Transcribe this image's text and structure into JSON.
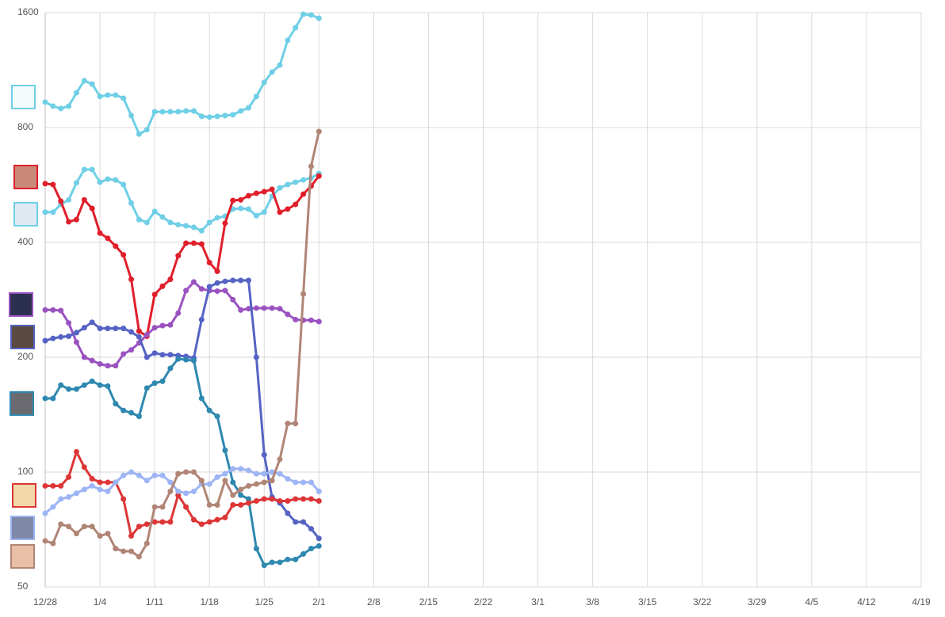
{
  "chart_data": {
    "type": "line",
    "log_scale": true,
    "grid": true,
    "categories": [
      "12/28",
      null,
      null,
      null,
      null,
      null,
      null,
      "1/4",
      null,
      null,
      null,
      null,
      null,
      null,
      "1/11",
      null,
      null,
      null,
      null,
      null,
      null,
      "1/18",
      null,
      null,
      null,
      null,
      null,
      null,
      "1/25",
      null,
      null,
      null,
      null,
      null,
      null,
      "2/1",
      null,
      null,
      null,
      null,
      null,
      null,
      "2/8",
      null,
      null,
      null,
      null,
      null,
      null,
      "2/15",
      null,
      null,
      null,
      null,
      null,
      null,
      "2/22",
      null,
      null,
      null,
      null,
      null,
      null,
      "3/1",
      null,
      null,
      null,
      null,
      null,
      null,
      "3/8",
      null,
      null,
      null,
      null,
      null,
      null,
      "3/15",
      null,
      null,
      null,
      null,
      null,
      null,
      "3/22",
      null,
      null,
      null,
      null,
      null,
      null,
      "3/29",
      null,
      null,
      null,
      null,
      null,
      null,
      "4/5",
      null,
      null,
      null,
      null,
      null,
      null,
      "4/12",
      null,
      null,
      null,
      null,
      null,
      null,
      "4/19"
    ],
    "ylim": [
      50,
      1600
    ],
    "yticks": [
      50,
      100,
      200,
      400,
      800,
      1600
    ],
    "series": [
      {
        "color": "#6fcfe6",
        "values": [
          933,
          910,
          897,
          910,
          987,
          1061,
          1040,
          965,
          973,
          973,
          955,
          860,
          769,
          789,
          880,
          880,
          880,
          880,
          884,
          884,
          856,
          852,
          856,
          860,
          864,
          884,
          901,
          965,
          1051,
          1118,
          1166,
          1354,
          1461,
          1585,
          1578,
          1547,
          null,
          null,
          null,
          null,
          null,
          null,
          null,
          null,
          null,
          null,
          null,
          null,
          null,
          null,
          null,
          null,
          null,
          null,
          null,
          null,
          null,
          null,
          null,
          null,
          null,
          null,
          null,
          null,
          null,
          null,
          null,
          null,
          null,
          null,
          null,
          null,
          null,
          null,
          null,
          null,
          null,
          null,
          null,
          null,
          null,
          null,
          null,
          null,
          null,
          null,
          null,
          null,
          null,
          null,
          null,
          null,
          null,
          null,
          null,
          null,
          null,
          null,
          null,
          null,
          null,
          null,
          null,
          null,
          null,
          null,
          null,
          null,
          null,
          null,
          null,
          null,
          null
        ]
      },
      {
        "color": "#6fcfe6",
        "values": [
          480,
          480,
          503,
          517,
          573,
          621,
          621,
          575,
          586,
          583,
          567,
          507,
          459,
          451,
          482,
          466,
          451,
          445,
          442,
          438,
          429,
          451,
          464,
          468,
          489,
          491,
          489,
          470,
          480,
          528,
          556,
          567,
          575,
          583,
          590,
          606,
          null,
          null,
          null,
          null,
          null,
          null,
          null,
          null,
          null,
          null,
          null,
          null,
          null,
          null,
          null,
          null,
          null,
          null,
          null,
          null,
          null,
          null,
          null,
          null,
          null,
          null,
          null,
          null,
          null,
          null,
          null,
          null,
          null,
          null,
          null,
          null,
          null,
          null,
          null,
          null,
          null,
          null,
          null,
          null,
          null,
          null,
          null,
          null,
          null,
          null,
          null,
          null,
          null,
          null,
          null,
          null,
          null,
          null,
          null,
          null,
          null,
          null,
          null,
          null,
          null,
          null,
          null,
          null,
          null,
          null,
          null,
          null,
          null,
          null,
          null,
          null,
          null
        ]
      },
      {
        "color": "#e01f2b",
        "values": [
          570,
          567,
          513,
          453,
          459,
          517,
          491,
          423,
          410,
          391,
          371,
          320,
          234,
          227,
          292,
          307,
          320,
          369,
          398,
          398,
          396,
          354,
          336,
          449,
          515,
          517,
          530,
          538,
          543,
          551,
          480,
          489,
          503,
          535,
          562,
          597,
          null,
          null,
          null,
          null,
          null,
          null,
          null,
          null,
          null,
          null,
          null,
          null,
          null,
          null,
          null,
          null,
          null,
          null,
          null,
          null,
          null,
          null,
          null,
          null,
          null,
          null,
          null,
          null,
          null,
          null,
          null,
          null,
          null,
          null,
          null,
          null,
          null,
          null,
          null,
          null,
          null,
          null,
          null,
          null,
          null,
          null,
          null,
          null,
          null,
          null,
          null,
          null,
          null,
          null,
          null,
          null,
          null,
          null,
          null,
          null,
          null,
          null,
          null,
          null,
          null,
          null,
          null,
          null,
          null,
          null,
          null,
          null,
          null,
          null,
          null,
          null,
          null
        ]
      },
      {
        "color": "#9a52c0",
        "values": [
          266,
          266,
          265,
          246,
          219,
          200,
          196,
          192,
          190,
          190,
          204,
          209,
          218,
          229,
          239,
          242,
          243,
          261,
          299,
          315,
          302,
          299,
          298,
          299,
          283,
          266,
          268,
          269,
          269,
          269,
          268,
          259,
          251,
          250,
          250,
          248,
          null,
          null,
          null,
          null,
          null,
          null,
          null,
          null,
          null,
          null,
          null,
          null,
          null,
          null,
          null,
          null,
          null,
          null,
          null,
          null,
          null,
          null,
          null,
          null,
          null,
          null,
          null,
          null,
          null,
          null,
          null,
          null,
          null,
          null,
          null,
          null,
          null,
          null,
          null,
          null,
          null,
          null,
          null,
          null,
          null,
          null,
          null,
          null,
          null,
          null,
          null,
          null,
          null,
          null,
          null,
          null,
          null,
          null,
          null,
          null,
          null,
          null,
          null,
          null,
          null,
          null,
          null,
          null,
          null,
          null,
          null,
          null,
          null,
          null,
          null,
          null,
          null
        ]
      },
      {
        "color": "#5563c4",
        "values": [
          221,
          224,
          226,
          227,
          232,
          239,
          247,
          238,
          238,
          238,
          238,
          233,
          226,
          200,
          205,
          203,
          203,
          202,
          201,
          199,
          251,
          306,
          313,
          316,
          318,
          318,
          318,
          200,
          111,
          86,
          83,
          78,
          74,
          74,
          71,
          67,
          null,
          null,
          null,
          null,
          null,
          null,
          null,
          null,
          null,
          null,
          null,
          null,
          null,
          null,
          null,
          null,
          null,
          null,
          null,
          null,
          null,
          null,
          null,
          null,
          null,
          null,
          null,
          null,
          null,
          null,
          null,
          null,
          null,
          null,
          null,
          null,
          null,
          null,
          null,
          null,
          null,
          null,
          null,
          null,
          null,
          null,
          null,
          null,
          null,
          null,
          null,
          null,
          null,
          null,
          null,
          null,
          null,
          null,
          null,
          null,
          null,
          null,
          null,
          null,
          null,
          null,
          null,
          null,
          null,
          null,
          null,
          null,
          null,
          null,
          null,
          null,
          null
        ]
      },
      {
        "color": "#2e88b0",
        "values": [
          156,
          156,
          169,
          165,
          165,
          169,
          173,
          169,
          168,
          151,
          145,
          143,
          140,
          166,
          171,
          173,
          187,
          198,
          197,
          196,
          156,
          145,
          140,
          114,
          94,
          87,
          85,
          63,
          57,
          58,
          58,
          59,
          59,
          61,
          63,
          64,
          null,
          null,
          null,
          null,
          null,
          null,
          null,
          null,
          null,
          null,
          null,
          null,
          null,
          null,
          null,
          null,
          null,
          null,
          null,
          null,
          null,
          null,
          null,
          null,
          null,
          null,
          null,
          null,
          null,
          null,
          null,
          null,
          null,
          null,
          null,
          null,
          null,
          null,
          null,
          null,
          null,
          null,
          null,
          null,
          null,
          null,
          null,
          null,
          null,
          null,
          null,
          null,
          null,
          null,
          null,
          null,
          null,
          null,
          null,
          null,
          null,
          null,
          null,
          null,
          null,
          null,
          null,
          null,
          null,
          null,
          null,
          null,
          null,
          null,
          null,
          null,
          null
        ]
      },
      {
        "color": "#dd3636",
        "values": [
          92,
          92,
          92,
          97,
          113,
          103,
          96,
          94,
          94,
          94,
          85,
          68,
          72,
          73,
          74,
          74,
          74,
          87,
          81,
          75,
          73,
          74,
          75,
          76,
          82,
          82,
          83,
          84,
          85,
          85,
          84,
          84,
          85,
          85,
          85,
          84,
          null,
          null,
          null,
          null,
          null,
          null,
          null,
          null,
          null,
          null,
          null,
          null,
          null,
          null,
          null,
          null,
          null,
          null,
          null,
          null,
          null,
          null,
          null,
          null,
          null,
          null,
          null,
          null,
          null,
          null,
          null,
          null,
          null,
          null,
          null,
          null,
          null,
          null,
          null,
          null,
          null,
          null,
          null,
          null,
          null,
          null,
          null,
          null,
          null,
          null,
          null,
          null,
          null,
          null,
          null,
          null,
          null,
          null,
          null,
          null,
          null,
          null,
          null,
          null,
          null,
          null,
          null,
          null,
          null,
          null,
          null,
          null,
          null,
          null,
          null,
          null,
          null
        ]
      },
      {
        "color": "#9db4f5",
        "values": [
          78,
          81,
          85,
          86,
          88,
          90,
          92,
          90,
          89,
          94,
          98,
          100,
          98,
          95,
          98,
          98,
          94,
          89,
          88,
          89,
          93,
          93,
          97,
          99,
          102,
          102,
          101,
          99,
          99,
          100,
          99,
          96,
          94,
          94,
          94,
          89,
          null,
          null,
          null,
          null,
          null,
          null,
          null,
          null,
          null,
          null,
          null,
          null,
          null,
          null,
          null,
          null,
          null,
          null,
          null,
          null,
          null,
          null,
          null,
          null,
          null,
          null,
          null,
          null,
          null,
          null,
          null,
          null,
          null,
          null,
          null,
          null,
          null,
          null,
          null,
          null,
          null,
          null,
          null,
          null,
          null,
          null,
          null,
          null,
          null,
          null,
          null,
          null,
          null,
          null,
          null,
          null,
          null,
          null,
          null,
          null,
          null,
          null,
          null,
          null,
          null,
          null,
          null,
          null,
          null,
          null,
          null,
          null,
          null,
          null,
          null,
          null,
          null
        ]
      },
      {
        "color": "#b08576",
        "values": [
          66,
          65,
          73,
          72,
          69,
          72,
          72,
          68,
          69,
          63,
          62,
          62,
          60,
          65,
          81,
          81,
          89,
          99,
          100,
          100,
          95,
          82,
          82,
          95,
          87,
          90,
          92,
          93,
          94,
          95,
          108,
          134,
          134,
          293,
          633,
          781,
          null,
          null,
          null,
          null,
          null,
          null,
          null,
          null,
          null,
          null,
          null,
          null,
          null,
          null,
          null,
          null,
          null,
          null,
          null,
          null,
          null,
          null,
          null,
          null,
          null,
          null,
          null,
          null,
          null,
          null,
          null,
          null,
          null,
          null,
          null,
          null,
          null,
          null,
          null,
          null,
          null,
          null,
          null,
          null,
          null,
          null,
          null,
          null,
          null,
          null,
          null,
          null,
          null,
          null,
          null,
          null,
          null,
          null,
          null,
          null,
          null,
          null,
          null,
          null,
          null,
          null,
          null,
          null,
          null,
          null,
          null,
          null,
          null,
          null,
          null,
          null,
          null
        ]
      }
    ]
  }
}
